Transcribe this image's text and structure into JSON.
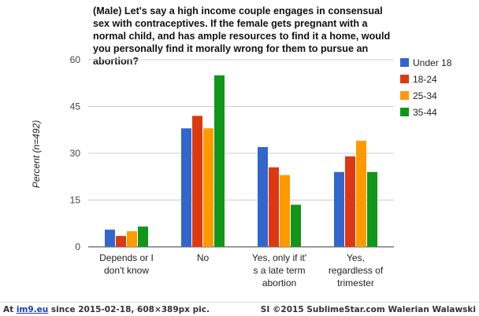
{
  "chart_data": {
    "type": "bar",
    "title": "(Male) Let's say a high income couple engages in consensual sex with contraceptives. If the female gets pregnant with a normal child, and has ample resources to find it a home, would you personally find it morally wrong for them to pursue an abortion?",
    "xlabel": "",
    "ylabel": "Percent (n=492)",
    "ylim": [
      0,
      60
    ],
    "yticks": [
      0,
      15,
      30,
      45,
      60
    ],
    "grid": true,
    "legend_position": "right",
    "categories": [
      [
        "Depends or I",
        "don't know"
      ],
      [
        "No"
      ],
      [
        "Yes, only if it'",
        "s a late term",
        "abortion"
      ],
      [
        "Yes,",
        "regardless of",
        "trimester"
      ]
    ],
    "series": [
      {
        "name": "Under 18",
        "color": "#3366cc",
        "values": [
          5.5,
          38,
          32,
          24
        ]
      },
      {
        "name": "18-24",
        "color": "#dc3912",
        "values": [
          3.5,
          42,
          25.5,
          29
        ]
      },
      {
        "name": "25-34",
        "color": "#ff9900",
        "values": [
          5,
          38,
          23,
          34
        ]
      },
      {
        "name": "35-44",
        "color": "#109618",
        "values": [
          6.5,
          55,
          13.5,
          24
        ]
      }
    ]
  },
  "footer": {
    "left_prefix": "At ",
    "left_site": "im9.eu",
    "left_suffix": " since 2015-02-18, 608×389px pic.",
    "right": "SI ©2015 SublimeStar.com Walerian Walawski"
  }
}
